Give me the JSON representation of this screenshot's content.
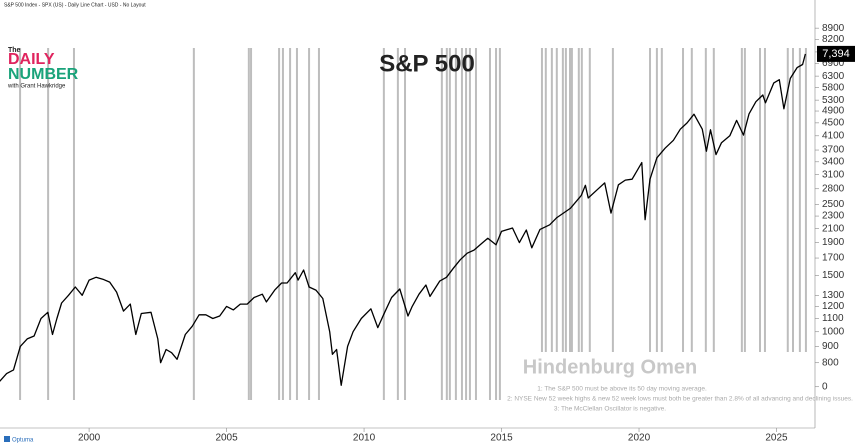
{
  "branding": {
    "top": "The",
    "line1": "DAILY",
    "line2": "NUMBER",
    "byline": "with Grant Hawkridge",
    "footer": "Optuma",
    "source_note": "S&P 500 Index - SPX (US) - Daily Line Chart - USD - No Layout"
  },
  "chart_data": {
    "type": "line",
    "title": "S&P 500",
    "log_scale": true,
    "color": "#000000",
    "x": [
      1996.75,
      1997.0,
      1997.25,
      1997.5,
      1997.75,
      1998.0,
      1998.25,
      1998.5,
      1998.67,
      1998.83,
      1999.0,
      1999.25,
      1999.5,
      1999.75,
      2000.0,
      2000.25,
      2000.5,
      2000.75,
      2001.0,
      2001.25,
      2001.5,
      2001.7,
      2001.9,
      2002.25,
      2002.5,
      2002.6,
      2002.8,
      2003.0,
      2003.2,
      2003.5,
      2003.75,
      2004.0,
      2004.25,
      2004.5,
      2004.75,
      2005.0,
      2005.25,
      2005.5,
      2005.75,
      2006.0,
      2006.3,
      2006.45,
      2006.75,
      2007.0,
      2007.2,
      2007.5,
      2007.6,
      2007.8,
      2008.0,
      2008.25,
      2008.5,
      2008.75,
      2008.85,
      2009.0,
      2009.17,
      2009.4,
      2009.6,
      2009.9,
      2010.25,
      2010.5,
      2010.75,
      2011.0,
      2011.3,
      2011.6,
      2011.75,
      2012.0,
      2012.25,
      2012.4,
      2012.75,
      2013.0,
      2013.25,
      2013.5,
      2013.75,
      2014.0,
      2014.25,
      2014.5,
      2014.8,
      2015.0,
      2015.4,
      2015.65,
      2015.9,
      2016.1,
      2016.4,
      2016.75,
      2017.0,
      2017.5,
      2017.9,
      2018.05,
      2018.15,
      2018.5,
      2018.75,
      2018.98,
      2019.25,
      2019.5,
      2019.75,
      2020.1,
      2020.22,
      2020.4,
      2020.65,
      2020.95,
      2021.25,
      2021.5,
      2021.75,
      2022.0,
      2022.3,
      2022.45,
      2022.6,
      2022.8,
      2023.0,
      2023.3,
      2023.55,
      2023.8,
      2024.0,
      2024.25,
      2024.5,
      2024.6,
      2024.9,
      2025.1,
      2025.27,
      2025.5,
      2025.75,
      2025.95,
      2026.05
    ],
    "values": [
      700,
      740,
      760,
      900,
      950,
      970,
      1100,
      1150,
      980,
      1100,
      1230,
      1300,
      1380,
      1300,
      1450,
      1480,
      1460,
      1430,
      1330,
      1160,
      1220,
      980,
      1140,
      1150,
      950,
      800,
      880,
      860,
      820,
      980,
      1040,
      1130,
      1130,
      1100,
      1120,
      1200,
      1170,
      1220,
      1220,
      1280,
      1310,
      1240,
      1350,
      1420,
      1420,
      1530,
      1450,
      1560,
      1380,
      1350,
      1270,
      1000,
      850,
      880,
      680,
      900,
      1000,
      1100,
      1180,
      1030,
      1150,
      1280,
      1360,
      1120,
      1200,
      1310,
      1400,
      1290,
      1440,
      1480,
      1580,
      1680,
      1760,
      1800,
      1880,
      1960,
      1870,
      2060,
      2110,
      1900,
      2080,
      1830,
      2090,
      2160,
      2270,
      2430,
      2670,
      2870,
      2620,
      2790,
      2920,
      2350,
      2880,
      2980,
      3000,
      3380,
      2240,
      3000,
      3500,
      3750,
      3970,
      4300,
      4500,
      4790,
      4300,
      3670,
      4280,
      3580,
      3900,
      4100,
      4580,
      4120,
      4800,
      5240,
      5500,
      5200,
      6000,
      6140,
      4980,
      6200,
      6700,
      6850,
      7394
    ],
    "last_value_label": "7,394",
    "xlim": [
      1996.76,
      2026.4
    ],
    "xticks": [
      2000,
      2005,
      2010,
      2015,
      2020,
      2025
    ],
    "ylim": [
      500,
      10900
    ],
    "yticks": [
      0,
      800,
      900,
      1000,
      1100,
      1200,
      1300,
      1500,
      1700,
      1900,
      2100,
      2300,
      2500,
      2800,
      3100,
      3400,
      3700,
      4100,
      4500,
      4900,
      5300,
      5800,
      6300,
      6900,
      7500,
      8200,
      8900
    ],
    "omens": {
      "name": "Hindenburg Omen",
      "color": "#bdbdbd",
      "x": [
        1997.49,
        1998.51,
        1999.45,
        2003.81,
        2005.81,
        2005.89,
        2006.91,
        2007.05,
        2007.31,
        2007.56,
        2008.0,
        2008.36,
        2010.72,
        2011.23,
        2011.49,
        2012.83,
        2013.01,
        2013.12,
        2013.34,
        2013.56,
        2013.71,
        2013.85,
        2014.07,
        2014.58,
        2014.8,
        2014.94,
        2016.47,
        2016.61,
        2016.83,
        2017.01,
        2017.23,
        2017.34,
        2017.49,
        2017.56,
        2017.81,
        2017.92,
        2018.21,
        2019.05,
        2020.4,
        2020.65,
        2020.83,
        2021.6,
        2021.92,
        2022.43,
        2022.72,
        2023.74,
        2023.85,
        2024.4,
        2024.58,
        2025.41,
        2025.6,
        2025.85,
        2026.07
      ],
      "rules": [
        "1: The S&P 500 must be above its 50 day moving average.",
        "2: NYSE New 52 week highs & new 52 week lows must both be greater than 2.8% of all advancing and declining issues.",
        "3: The McClellan Oscillator is negative."
      ]
    }
  }
}
